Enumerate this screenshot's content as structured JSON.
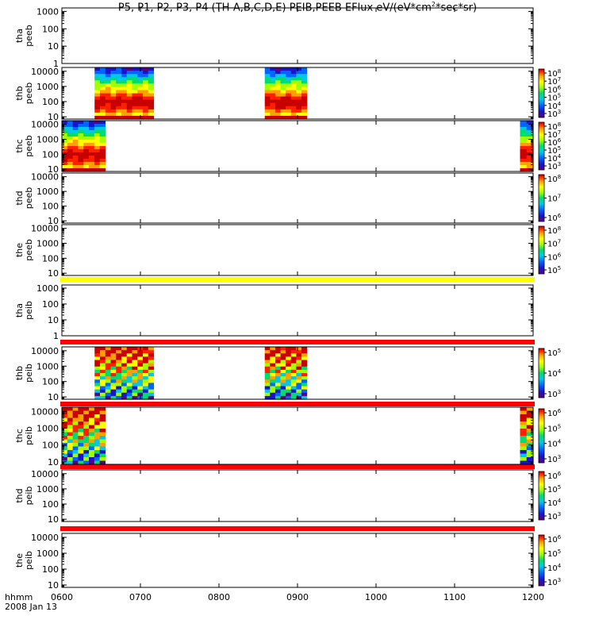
{
  "title": {
    "prefix": "P5, P1, P2, P3, P4 (TH-A,B,C,D,E) PEIB,PEEB EFlux eV/(eV*cm",
    "sup": "2",
    "suffix": "*sec*sr)"
  },
  "chart_data": {
    "type": "heatmap",
    "x_range": [
      "0600",
      "1200"
    ],
    "x_ticks": [
      "0600",
      "0700",
      "0800",
      "0900",
      "1000",
      "1100",
      "1200"
    ],
    "x_label_prefix": "hhmm",
    "date_label": "2008 Jan 13",
    "panels": [
      {
        "probe": "tha",
        "dataset": "peeb",
        "yticks": [
          "1000",
          "100",
          "10",
          "1"
        ],
        "ylog": [
          0,
          3.2
        ],
        "colorbar": null,
        "intervals": []
      },
      {
        "probe": "thb",
        "dataset": "peeb",
        "yticks": [
          "10000",
          "1000",
          "100",
          "10"
        ],
        "ylog": [
          0.85,
          4.25
        ],
        "colorbar": {
          "ticks": [
            "10^8",
            "10^7",
            "10^6",
            "10^5",
            "10^4",
            "10^3"
          ]
        },
        "intervals": [
          [
            "0625",
            "0710"
          ],
          [
            "0835",
            "0867"
          ]
        ]
      },
      {
        "probe": "thc",
        "dataset": "peeb",
        "yticks": [
          "10000",
          "1000",
          "100",
          "10"
        ],
        "ylog": [
          0.85,
          4.25
        ],
        "colorbar": {
          "ticks": [
            "10^8",
            "10^7",
            "10^6",
            "10^5",
            "10^4",
            "10^3"
          ]
        },
        "intervals": [
          [
            "0600",
            "0633"
          ],
          [
            "1150",
            "1183"
          ]
        ]
      },
      {
        "probe": "thd",
        "dataset": "peeb",
        "yticks": [
          "10000",
          "1000",
          "100",
          "10"
        ],
        "ylog": [
          0.85,
          4.25
        ],
        "colorbar": {
          "ticks": [
            "10^8",
            "10^7",
            "10^6"
          ]
        },
        "intervals": []
      },
      {
        "probe": "the",
        "dataset": "peeb",
        "yticks": [
          "10000",
          "1000",
          "100",
          "10"
        ],
        "ylog": [
          0.85,
          4.25
        ],
        "colorbar": {
          "ticks": [
            "10^8",
            "10^7",
            "10^6",
            "10^5"
          ]
        },
        "intervals": [
          [
            "0872",
            "0900"
          ]
        ]
      },
      {
        "probe": "tha",
        "dataset": "peib",
        "yticks": [
          "1000",
          "100",
          "10",
          "1"
        ],
        "ylog": [
          0,
          3.2
        ],
        "colorbar": null,
        "intervals": []
      },
      {
        "probe": "thb",
        "dataset": "peib",
        "yticks": [
          "10000",
          "1000",
          "100",
          "10"
        ],
        "ylog": [
          0.85,
          4.25
        ],
        "colorbar": {
          "ticks": [
            "10^5",
            "10^4",
            "10^3"
          ]
        },
        "intervals": [
          [
            "0625",
            "0710"
          ],
          [
            "0835",
            "0867"
          ]
        ]
      },
      {
        "probe": "thc",
        "dataset": "peib",
        "yticks": [
          "10000",
          "1000",
          "100",
          "10"
        ],
        "ylog": [
          0.85,
          4.25
        ],
        "colorbar": {
          "ticks": [
            "10^6",
            "10^5",
            "10^4",
            "10^3"
          ]
        },
        "intervals": [
          [
            "0600",
            "0633"
          ],
          [
            "1150",
            "1183"
          ]
        ]
      },
      {
        "probe": "thd",
        "dataset": "peib",
        "yticks": [
          "10000",
          "1000",
          "100",
          "10"
        ],
        "ylog": [
          0.85,
          4.25
        ],
        "colorbar": {
          "ticks": [
            "10^6",
            "10^5",
            "10^4",
            "10^3"
          ]
        },
        "intervals": []
      },
      {
        "probe": "the",
        "dataset": "peib",
        "yticks": [
          "10000",
          "1000",
          "100",
          "10"
        ],
        "ylog": [
          0.85,
          4.25
        ],
        "colorbar": {
          "ticks": [
            "10^6",
            "10^5",
            "10^4",
            "10^3"
          ]
        },
        "intervals": [
          [
            "0872",
            "0905"
          ]
        ]
      }
    ],
    "flag_bars": [
      {
        "between": "the-peeb/tha-peib",
        "color": "#ffff00"
      },
      {
        "between": "tha-peib/thb-peib",
        "color": "#ff0000"
      },
      {
        "between": "thb-peib/thc-peib",
        "color": "#ff0000"
      },
      {
        "between": "thc-peib/thd-peib",
        "color": "#ff0000"
      },
      {
        "between": "thd-peib/the-peib",
        "color": "#ff0000"
      }
    ]
  }
}
